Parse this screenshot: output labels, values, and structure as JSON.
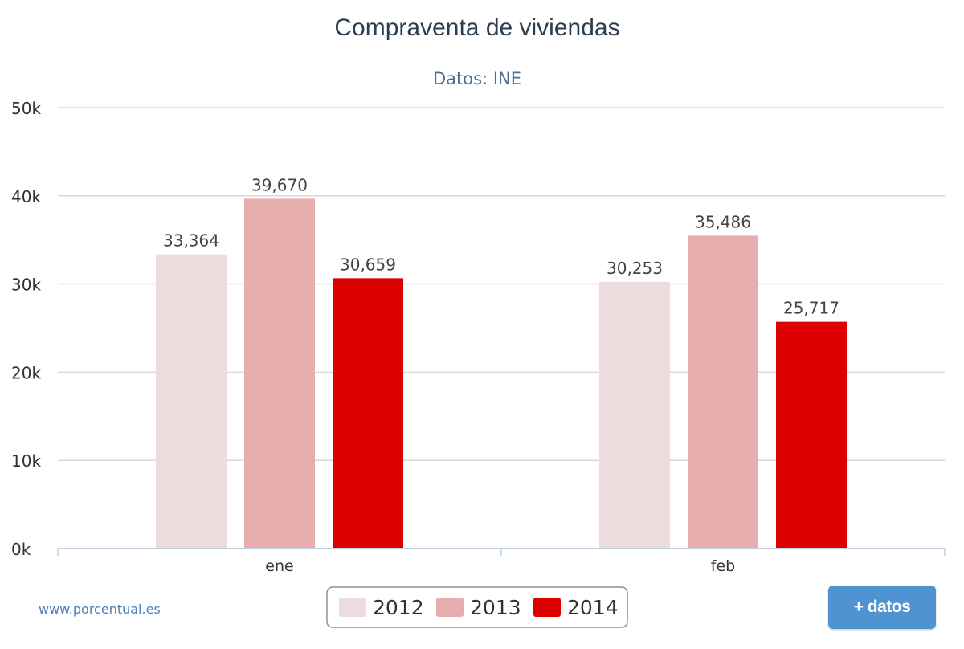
{
  "chart_data": {
    "type": "bar",
    "title": "Compraventa de viviendas",
    "subtitle": "Datos: INE",
    "categories": [
      "ene",
      "feb"
    ],
    "series": [
      {
        "name": "2012",
        "values": [
          33364,
          30253
        ],
        "color": "#ecdcde"
      },
      {
        "name": "2013",
        "values": [
          39670,
          35486
        ],
        "color": "#e8adad"
      },
      {
        "name": "2014",
        "values": [
          30659,
          25717
        ],
        "color": "#dd0000"
      }
    ],
    "data_labels": [
      [
        "33,364",
        "30,253"
      ],
      [
        "39,670",
        "35,486"
      ],
      [
        "30,659",
        "25,717"
      ]
    ],
    "ylim": [
      0,
      50000
    ],
    "yticks": [
      0,
      10000,
      20000,
      30000,
      40000,
      50000
    ],
    "ytick_labels": [
      "0k",
      "10k",
      "20k",
      "30k",
      "40k",
      "50k"
    ],
    "grid": true,
    "legend_position": "bottom-center",
    "colors": {
      "grid": "#d8d8d8",
      "axis": "#c0d0e0"
    }
  },
  "credit": "www.porcentual.es",
  "more_button": {
    "label": "+ datos"
  }
}
